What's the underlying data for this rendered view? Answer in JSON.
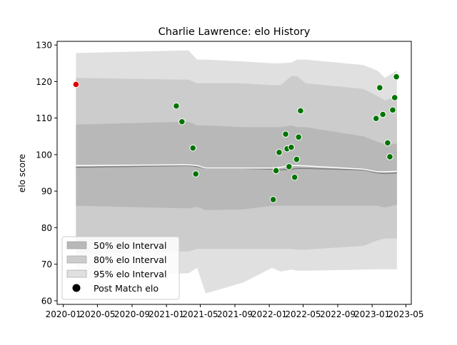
{
  "chart_data": {
    "type": "scatter",
    "title": "Charlie Lawrence: elo History",
    "xlabel": "",
    "ylabel": "elo score",
    "xlim": [
      "2019-12-10",
      "2023-05-20"
    ],
    "ylim": [
      59,
      131
    ],
    "x_ticks": [
      "2020-01",
      "2020-05",
      "2020-09",
      "2021-01",
      "2021-05",
      "2021-09",
      "2022-01",
      "2022-05",
      "2022-09",
      "2023-01",
      "2023-05"
    ],
    "y_ticks": [
      60,
      70,
      80,
      90,
      100,
      110,
      120,
      130
    ],
    "grid": false,
    "legend_position": "lower-left",
    "colors": {
      "band_95": "#e0e0e0",
      "band_80": "#cccccc",
      "band_50": "#b8b8b8",
      "mean_line": "#808080",
      "median_line": "#ffffff",
      "match_point": "#007400",
      "initial_point": "#e00000"
    },
    "legend": [
      {
        "label": "50% elo Interval",
        "swatch": "band_50"
      },
      {
        "label": "80% elo Interval",
        "swatch": "band_80"
      },
      {
        "label": "95% elo Interval",
        "swatch": "band_95"
      },
      {
        "label": "Post Match elo",
        "swatch": "marker"
      }
    ],
    "bands": {
      "x": [
        "2020-02-15",
        "2021-03-01",
        "2021-03-20",
        "2021-04-20",
        "2021-05-20",
        "2021-10-01",
        "2022-01-10",
        "2022-02-10",
        "2022-03-20",
        "2022-04-10",
        "2022-05-10",
        "2022-12-01",
        "2023-01-20",
        "2023-02-15",
        "2023-03-30"
      ],
      "p95_upper": [
        127.8,
        128.5,
        128.5,
        126.0,
        126.0,
        125.5,
        125.0,
        125.0,
        125.2,
        126.0,
        126.0,
        124.5,
        123.0,
        121.0,
        123.0
      ],
      "p95_lower": [
        66.0,
        67.5,
        67.5,
        69.0,
        62.0,
        65.0,
        69.0,
        68.0,
        68.5,
        68.2,
        68.2,
        68.5,
        68.6,
        68.6,
        68.6
      ],
      "p80_upper": [
        121.0,
        120.5,
        120.5,
        119.5,
        119.5,
        119.5,
        119.0,
        119.0,
        121.5,
        121.5,
        119.5,
        118.0,
        116.0,
        114.8,
        116.0
      ],
      "p80_lower": [
        73.0,
        73.5,
        73.5,
        74.2,
        74.2,
        74.2,
        74.2,
        74.2,
        74.2,
        74.0,
        74.0,
        75.0,
        76.5,
        77.0,
        77.0
      ],
      "p50_upper": [
        108.2,
        109.0,
        109.0,
        108.0,
        108.0,
        107.5,
        107.5,
        107.5,
        108.0,
        107.5,
        107.5,
        105.0,
        103.5,
        102.8,
        103.0
      ],
      "p50_lower": [
        86.0,
        85.3,
        85.3,
        85.7,
        84.8,
        85.0,
        86.0,
        86.0,
        86.0,
        86.0,
        86.0,
        86.0,
        86.0,
        85.5,
        86.3
      ],
      "mean": [
        96.5,
        97.0,
        97.0,
        96.7,
        96.2,
        96.2,
        96.0,
        95.8,
        96.0,
        96.2,
        96.2,
        95.8,
        95.0,
        94.8,
        95.0
      ],
      "median": [
        97.0,
        97.2,
        97.2,
        97.0,
        96.3,
        96.3,
        96.3,
        96.5,
        97.0,
        97.0,
        96.9,
        96.0,
        95.3,
        95.3,
        95.4
      ]
    },
    "initial_point": {
      "x": "2020-02-15",
      "y": 119.2
    },
    "points": [
      {
        "x": "2021-02-05",
        "y": 113.3
      },
      {
        "x": "2021-02-25",
        "y": 109.0
      },
      {
        "x": "2021-04-05",
        "y": 101.8
      },
      {
        "x": "2021-04-15",
        "y": 94.7
      },
      {
        "x": "2022-01-15",
        "y": 87.7
      },
      {
        "x": "2022-01-25",
        "y": 95.6
      },
      {
        "x": "2022-02-05",
        "y": 100.6
      },
      {
        "x": "2022-02-28",
        "y": 105.6
      },
      {
        "x": "2022-03-05",
        "y": 101.6
      },
      {
        "x": "2022-03-12",
        "y": 96.7
      },
      {
        "x": "2022-03-20",
        "y": 102.0
      },
      {
        "x": "2022-04-01",
        "y": 93.8
      },
      {
        "x": "2022-04-08",
        "y": 98.7
      },
      {
        "x": "2022-04-15",
        "y": 104.8
      },
      {
        "x": "2022-04-22",
        "y": 112.0
      },
      {
        "x": "2023-01-15",
        "y": 109.9
      },
      {
        "x": "2023-01-28",
        "y": 118.3
      },
      {
        "x": "2023-02-08",
        "y": 111.0
      },
      {
        "x": "2023-02-25",
        "y": 103.2
      },
      {
        "x": "2023-03-05",
        "y": 99.4
      },
      {
        "x": "2023-03-15",
        "y": 112.2
      },
      {
        "x": "2023-03-22",
        "y": 115.6
      },
      {
        "x": "2023-03-28",
        "y": 121.3
      }
    ]
  }
}
